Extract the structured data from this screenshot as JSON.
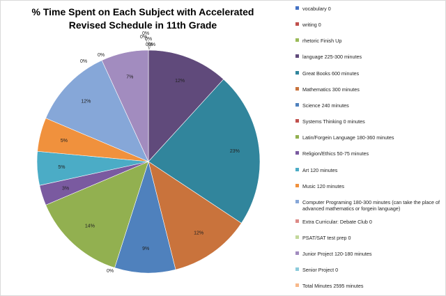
{
  "chart_data": {
    "type": "pie",
    "title_lines": [
      "% Time Spent on Each Subject with Accelerated",
      "Revised Schedule in 11th Grade"
    ],
    "legend_position": "right",
    "slices": [
      {
        "name": "vocabulary 0",
        "value": 0,
        "label": "0%",
        "color": "#4472c4"
      },
      {
        "name": "writing 0",
        "value": 0,
        "label": "0%",
        "color": "#c0504d"
      },
      {
        "name": "rhetoric Finish Up",
        "value": 0,
        "label": "0%",
        "color": "#9bbb59"
      },
      {
        "name": "language 225-300 minutes",
        "value": 12,
        "label": "12%",
        "color": "#604a7b"
      },
      {
        "name": "Great Books 600 minutes",
        "value": 23,
        "label": "23%",
        "color": "#31859c"
      },
      {
        "name": "Mathematics 300 minutes",
        "value": 12,
        "label": "12%",
        "color": "#c9733c"
      },
      {
        "name": "Science 240 minutes",
        "value": 9,
        "label": "9%",
        "color": "#4f81bd"
      },
      {
        "name": "Systems Thinking 0 minutes",
        "value": 0,
        "label": "0%",
        "color": "#c0504d"
      },
      {
        "name": "Latin/Forgein Language 180-360 minutes",
        "value": 14,
        "label": "14%",
        "color": "#92b050"
      },
      {
        "name": "Religion/Ethics 50-75 minutes",
        "value": 3,
        "label": "3%",
        "color": "#7a5aa0"
      },
      {
        "name": "Art 120 minutes",
        "value": 5,
        "label": "5%",
        "color": "#4bacc6"
      },
      {
        "name": "Music 120 minutes",
        "value": 5,
        "label": "5%",
        "color": "#f0913d"
      },
      {
        "name": "Computer Programing 180-300 minutes (can take the place of advanced mathematics or forgein language)",
        "value": 12,
        "label": "12%",
        "color": "#86a7d8"
      },
      {
        "name": "Extra Curricular: Debate Club 0",
        "value": 0,
        "label": "0%",
        "color": "#dd8a87"
      },
      {
        "name": "PSAT/SAT test prep 0",
        "value": 0,
        "label": "0%",
        "color": "#c3d89b"
      },
      {
        "name": "Junior Project 120-180 minutes",
        "value": 7,
        "label": "7%",
        "color": "#a28cbf"
      },
      {
        "name": "Senior Project 0",
        "value": 0,
        "label": "0%",
        "color": "#8ccbdb"
      },
      {
        "name": "Total Minutes 2595 minutes",
        "value": 0,
        "label": "0%",
        "color": "#f7b98a"
      }
    ]
  }
}
